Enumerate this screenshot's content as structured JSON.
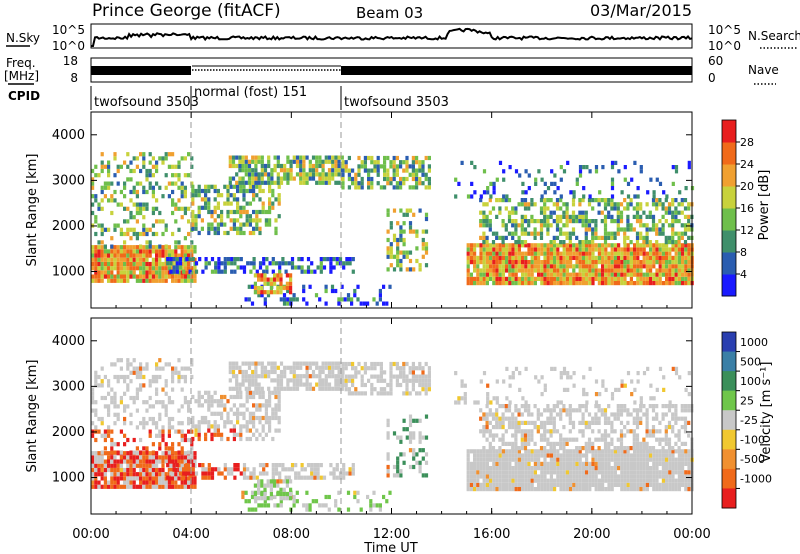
{
  "header": {
    "station": "Prince George (fitACF)",
    "beam": "Beam 03",
    "date": "03/Mar/2015"
  },
  "noise_panel": {
    "left_label": "N.Sky",
    "right_label": "N.Search",
    "ytick_top": "10^5",
    "ytick_bottom": "10^0"
  },
  "freq_panel": {
    "left_label_1": "Freq.",
    "left_label_2": "[MHz]",
    "left_ticks": [
      "18",
      "8"
    ],
    "right_label": "Nave",
    "right_ticks": [
      "60",
      "0"
    ]
  },
  "cpid": {
    "label": "CPID",
    "segments": [
      {
        "start_h": 0,
        "end_h": 4,
        "name": "twofsound 3503"
      },
      {
        "start_h": 4,
        "end_h": 10,
        "name": "normal (fost) 151"
      },
      {
        "start_h": 10,
        "end_h": 24,
        "name": "twofsound 3503"
      }
    ]
  },
  "chart_data": [
    {
      "type": "heatmap",
      "id": "power",
      "ylabel": "Slant Range [km]",
      "yticks": [
        "1000",
        "2000",
        "3000",
        "4000"
      ],
      "ylim": [
        200,
        4500
      ],
      "colorbar_label": "Power [dB]",
      "colorbar_ticks": [
        "4",
        "8",
        "12",
        "16",
        "20",
        "24",
        "28"
      ],
      "colorbar_colors": [
        "#1a1aff",
        "#2a5db0",
        "#3f8f6b",
        "#6fbf4b",
        "#c8d23c",
        "#f0a030",
        "#f06a1a",
        "#e81e1e"
      ]
    },
    {
      "type": "heatmap",
      "id": "velocity",
      "ylabel": "Slant Range [km]",
      "yticks": [
        "1000",
        "2000",
        "3000",
        "4000"
      ],
      "ylim": [
        200,
        4500
      ],
      "colorbar_label": "Velocity [m s⁻¹]",
      "colorbar_ticks": [
        "1000",
        "500",
        "100",
        "25",
        "-25",
        "-100",
        "-500",
        "-1000"
      ],
      "colorbar_colors": [
        "#2a3fb0",
        "#3a7fa6",
        "#3b8f5a",
        "#6fc64a",
        "#c8c8c8",
        "#f0c830",
        "#f09030",
        "#f06a1a",
        "#e81e1e"
      ]
    }
  ],
  "xaxis": {
    "label": "Time UT",
    "ticks": [
      "00:00",
      "04:00",
      "08:00",
      "12:00",
      "16:00",
      "20:00",
      "00:00"
    ]
  }
}
